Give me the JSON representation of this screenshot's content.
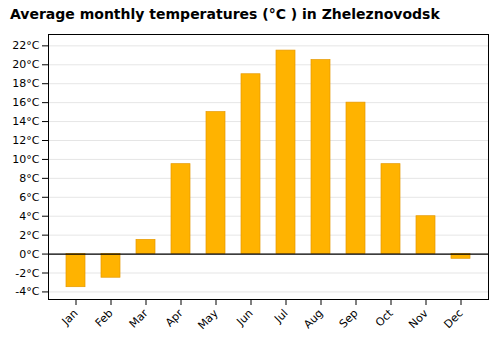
{
  "chart_data": {
    "type": "bar",
    "title": "Average monthly temperatures (°C ) in Zheleznovodsk",
    "categories": [
      "Jan",
      "Feb",
      "Mar",
      "Apr",
      "May",
      "Jun",
      "Jul",
      "Aug",
      "Sep",
      "Oct",
      "Nov",
      "Dec"
    ],
    "values": [
      -3.5,
      -2.5,
      1.5,
      9.5,
      15.0,
      19.0,
      21.5,
      20.5,
      16.0,
      9.5,
      4.0,
      -0.5
    ],
    "color": "#FFB300",
    "ylim": [
      -4.8,
      23.2
    ],
    "yticks": [
      {
        "value": 22,
        "label": "22°C"
      },
      {
        "value": 20,
        "label": "20°C"
      },
      {
        "value": 18,
        "label": "18°C"
      },
      {
        "value": 16,
        "label": "16°C"
      },
      {
        "value": 14,
        "label": "14°C"
      },
      {
        "value": 12,
        "label": "12°C"
      },
      {
        "value": 10,
        "label": "10°C"
      },
      {
        "value": 8,
        "label": "8°C"
      },
      {
        "value": 6,
        "label": "6°C"
      },
      {
        "value": 4,
        "label": "4°C"
      },
      {
        "value": 2,
        "label": "2°C"
      },
      {
        "value": 0,
        "label": "0°C"
      },
      {
        "value": -2,
        "label": "-2°C"
      },
      {
        "value": -4,
        "label": "-4°C"
      }
    ],
    "grid": true
  }
}
